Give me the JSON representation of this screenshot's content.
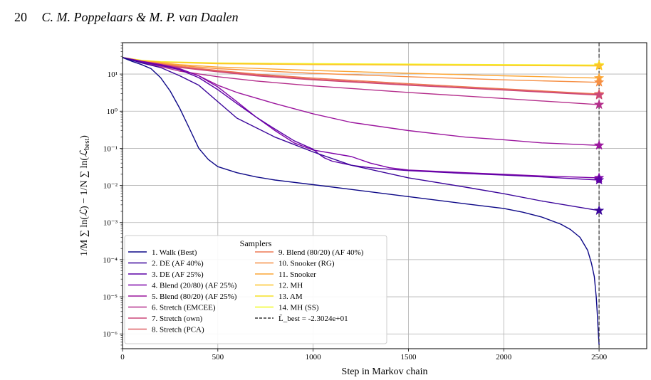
{
  "running_head": {
    "page_number": "20",
    "authors": "C. M. Poppelaars & M. P. van Daalen"
  },
  "chart_data": {
    "type": "line",
    "title": "",
    "xlabel": "Step in Markov chain",
    "ylabel": "1/M Σ ln(L) − 1/N Σ ln(L_best)",
    "x_scale": "linear",
    "y_scale": "log",
    "xlim": [
      0,
      2750
    ],
    "ylim": [
      4e-07,
      70
    ],
    "x_ticks": [
      0,
      500,
      1000,
      1500,
      2000,
      2500
    ],
    "x_tick_labels": [
      "0",
      "500",
      "1000",
      "1500",
      "2000",
      "2500"
    ],
    "y_ticks": [
      1e-06,
      1e-05,
      0.0001,
      0.001,
      0.01,
      0.1,
      1,
      10
    ],
    "y_tick_labels": [
      "10⁻⁶",
      "10⁻⁵",
      "10⁻⁴",
      "10⁻³",
      "10⁻²",
      "10⁻¹",
      "10⁰",
      "10¹"
    ],
    "grid": true,
    "vline": {
      "x": 2500,
      "style": "dashed",
      "color": "#333333"
    },
    "end_markers": "star",
    "legend": {
      "title": "Samplers",
      "placement": "lower-left",
      "best_entry": "L̄_best = -2.3024e+01"
    },
    "series": [
      {
        "name": "1. Walk (Best)",
        "color": "#0d0887",
        "x": [
          0,
          50,
          100,
          150,
          200,
          250,
          300,
          350,
          400,
          450,
          500,
          600,
          700,
          800,
          1000,
          1200,
          1500,
          1800,
          2000,
          2100,
          2200,
          2300,
          2350,
          2400,
          2440,
          2460,
          2475,
          2485,
          2490,
          2495,
          2500
        ],
        "y": [
          28,
          22,
          18,
          14,
          8,
          3.5,
          1.2,
          0.35,
          0.1,
          0.05,
          0.032,
          0.022,
          0.017,
          0.014,
          0.0105,
          0.0078,
          0.005,
          0.0032,
          0.0024,
          0.0019,
          0.0014,
          0.0009,
          0.00065,
          0.0004,
          0.00018,
          8e-05,
          3.5e-05,
          1e-05,
          4e-06,
          1.3e-06,
          5e-07
        ]
      },
      {
        "name": "2. DE (AF 40%)",
        "color": "#3a049a",
        "x": [
          0,
          100,
          200,
          300,
          400,
          500,
          600,
          800,
          1000,
          1200,
          1500,
          1800,
          2000,
          2200,
          2500
        ],
        "y": [
          28,
          20,
          15,
          9,
          5,
          1.8,
          0.65,
          0.2,
          0.08,
          0.035,
          0.016,
          0.009,
          0.006,
          0.0038,
          0.0021
        ]
      },
      {
        "name": "3. DE (AF 25%)",
        "color": "#5c01a6",
        "x": [
          0,
          100,
          200,
          300,
          400,
          500,
          600,
          700,
          800,
          900,
          1000,
          1030,
          1060,
          1100,
          1200,
          1300,
          1500,
          1800,
          2000,
          2200,
          2500
        ],
        "y": [
          28,
          21,
          17,
          13,
          8,
          3.8,
          1.6,
          0.7,
          0.33,
          0.16,
          0.095,
          0.07,
          0.055,
          0.045,
          0.035,
          0.03,
          0.025,
          0.021,
          0.019,
          0.017,
          0.014
        ]
      },
      {
        "name": "4. Blend (20/80) (AF 25%)",
        "color": "#7e03a8",
        "x": [
          0,
          100,
          200,
          300,
          400,
          500,
          600,
          700,
          800,
          900,
          1000,
          1200,
          1300,
          1400,
          1500,
          1800,
          2000,
          2200,
          2500
        ],
        "y": [
          28,
          22,
          18,
          14,
          9,
          4.5,
          1.8,
          0.7,
          0.3,
          0.14,
          0.09,
          0.06,
          0.04,
          0.03,
          0.026,
          0.022,
          0.02,
          0.018,
          0.016
        ]
      },
      {
        "name": "5. Blend (80/20) (AF 25%)",
        "color": "#9c179e",
        "x": [
          0,
          100,
          200,
          300,
          400,
          500,
          600,
          800,
          1000,
          1200,
          1500,
          1800,
          2000,
          2200,
          2500
        ],
        "y": [
          28,
          22,
          18,
          13.5,
          9,
          5,
          3.2,
          1.6,
          0.85,
          0.5,
          0.3,
          0.2,
          0.17,
          0.14,
          0.12
        ]
      },
      {
        "name": "6. Stretch (EMCEE)",
        "color": "#b52f8c",
        "x": [
          0,
          100,
          200,
          300,
          500,
          700,
          1000,
          1500,
          2000,
          2500
        ],
        "y": [
          28,
          21,
          16,
          12,
          8.5,
          6.5,
          4.8,
          3.2,
          2.2,
          1.5
        ]
      },
      {
        "name": "7. Stretch (own)",
        "color": "#cc4778",
        "x": [
          0,
          100,
          200,
          300,
          500,
          700,
          1000,
          1500,
          2000,
          2500
        ],
        "y": [
          28,
          22,
          18,
          15,
          11.5,
          9,
          7,
          5,
          3.7,
          2.7
        ]
      },
      {
        "name": "8. Stretch (PCA)",
        "color": "#de5f65",
        "x": [
          0,
          100,
          200,
          300,
          500,
          700,
          1000,
          1500,
          2000,
          2500
        ],
        "y": [
          28,
          22,
          18.5,
          15.5,
          12,
          9.5,
          7.3,
          5.2,
          3.8,
          2.8
        ]
      },
      {
        "name": "9. Blend (80/20) (AF 40%)",
        "color": "#ed7953",
        "x": [
          0,
          100,
          200,
          300,
          500,
          700,
          1000,
          1500,
          2000,
          2500
        ],
        "y": [
          28,
          22,
          18.5,
          16,
          12.5,
          10,
          7.8,
          5.5,
          4,
          2.9
        ]
      },
      {
        "name": "10. Snooker (RG)",
        "color": "#f68f44",
        "x": [
          0,
          100,
          200,
          300,
          500,
          1000,
          1500,
          2000,
          2500
        ],
        "y": [
          28,
          22,
          19,
          17,
          14,
          10.5,
          8.5,
          7,
          6
        ]
      },
      {
        "name": "11. Snooker",
        "color": "#fca636",
        "x": [
          0,
          100,
          200,
          300,
          500,
          1000,
          1500,
          2000,
          2500
        ],
        "y": [
          28,
          22.5,
          20,
          18,
          15.5,
          12.5,
          10.5,
          9,
          7.8
        ]
      },
      {
        "name": "12. MH",
        "color": "#fdc328",
        "x": [
          0,
          100,
          200,
          500,
          1000,
          1500,
          2000,
          2500
        ],
        "y": [
          28,
          23,
          21,
          19,
          18,
          17.5,
          17,
          16.5
        ]
      },
      {
        "name": "13. AM",
        "color": "#f7e225",
        "x": [
          0,
          100,
          200,
          500,
          1000,
          1500,
          2000,
          2500
        ],
        "y": [
          28,
          23,
          21,
          19.5,
          18.5,
          18,
          17.5,
          17
        ]
      },
      {
        "name": "14. MH (SS)",
        "color": "#f0f921",
        "x": [
          0,
          100,
          200,
          500,
          1000,
          1500,
          2000,
          2500
        ],
        "y": [
          28,
          23.5,
          21.5,
          20,
          19,
          18.5,
          18,
          17.5
        ]
      }
    ]
  }
}
